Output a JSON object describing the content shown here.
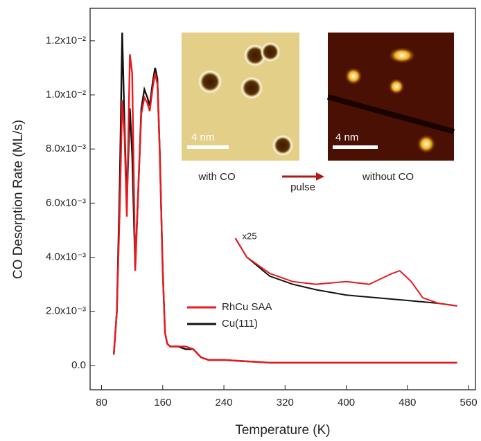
{
  "chart_data": {
    "type": "line",
    "x_label": "Temperature (K)",
    "y_label": "CO Desorption Rate (ML/s)",
    "xlim": [
      65,
      569
    ],
    "ylim": [
      -0.0009,
      0.0132
    ],
    "xticks": [
      80,
      160,
      240,
      320,
      400,
      480,
      560
    ],
    "yticks": [
      {
        "value": 0,
        "label": "0.0"
      },
      {
        "value": 0.002,
        "label": "2.0x10⁻³"
      },
      {
        "value": 0.004,
        "label": "4.0x10⁻³"
      },
      {
        "value": 0.006,
        "label": "6.0x10⁻³"
      },
      {
        "value": 0.008,
        "label": "8.0x10⁻³"
      },
      {
        "value": 0.01,
        "label": "1.0x10⁻²"
      },
      {
        "value": 0.012,
        "label": "1.2x10⁻²"
      }
    ],
    "x": [
      96,
      100,
      104,
      107,
      110,
      113,
      117,
      120,
      124,
      128,
      132,
      136,
      140,
      143,
      147,
      150,
      153,
      156,
      160,
      163,
      166,
      170,
      180,
      190,
      200,
      210,
      220,
      240,
      300,
      400,
      500,
      545
    ],
    "series": [
      {
        "name": "RhCu SAA",
        "color": "#e8191f",
        "values": [
          0.0004,
          0.002,
          0.006,
          0.0098,
          0.0085,
          0.0055,
          0.0115,
          0.0108,
          0.0035,
          0.0065,
          0.0093,
          0.0099,
          0.0097,
          0.0094,
          0.0103,
          0.0108,
          0.0104,
          0.008,
          0.0035,
          0.0012,
          0.0008,
          0.0007,
          0.0007,
          0.0007,
          0.0006,
          0.0003,
          0.0002,
          0.0002,
          0.0001,
          0.0001,
          0.0001,
          0.0001
        ]
      },
      {
        "name": "Cu(111)",
        "color": "#111111",
        "values": [
          0.0004,
          0.002,
          0.007,
          0.0123,
          0.009,
          0.006,
          0.0095,
          0.0078,
          0.0036,
          0.0065,
          0.0095,
          0.0102,
          0.0099,
          0.0096,
          0.0105,
          0.011,
          0.0106,
          0.008,
          0.0035,
          0.0012,
          0.0008,
          0.0007,
          0.0007,
          0.0006,
          0.0006,
          0.0003,
          0.0002,
          0.0002,
          0.0001,
          0.0001,
          0.0001,
          0.0001
        ]
      }
    ],
    "magnified": {
      "label": "x25",
      "series": [
        {
          "color": "#111111",
          "x": [
            255,
            270,
            300,
            330,
            360,
            400,
            440,
            480,
            520,
            545
          ],
          "values": [
            0.0047,
            0.004,
            0.0033,
            0.003,
            0.0028,
            0.0026,
            0.0025,
            0.0024,
            0.0023,
            0.0022
          ]
        },
        {
          "color": "#e8191f",
          "x": [
            255,
            270,
            300,
            330,
            360,
            400,
            430,
            460,
            470,
            485,
            500,
            520,
            545
          ],
          "values": [
            0.0047,
            0.004,
            0.0034,
            0.0031,
            0.003,
            0.0031,
            0.003,
            0.0034,
            0.0035,
            0.0031,
            0.0025,
            0.0023,
            0.0022
          ]
        }
      ]
    },
    "inset": {
      "left_caption": "with CO",
      "arrow_label": "pulse",
      "right_caption": "without CO",
      "left_scale": "4 nm",
      "right_scale": "4 nm"
    }
  }
}
